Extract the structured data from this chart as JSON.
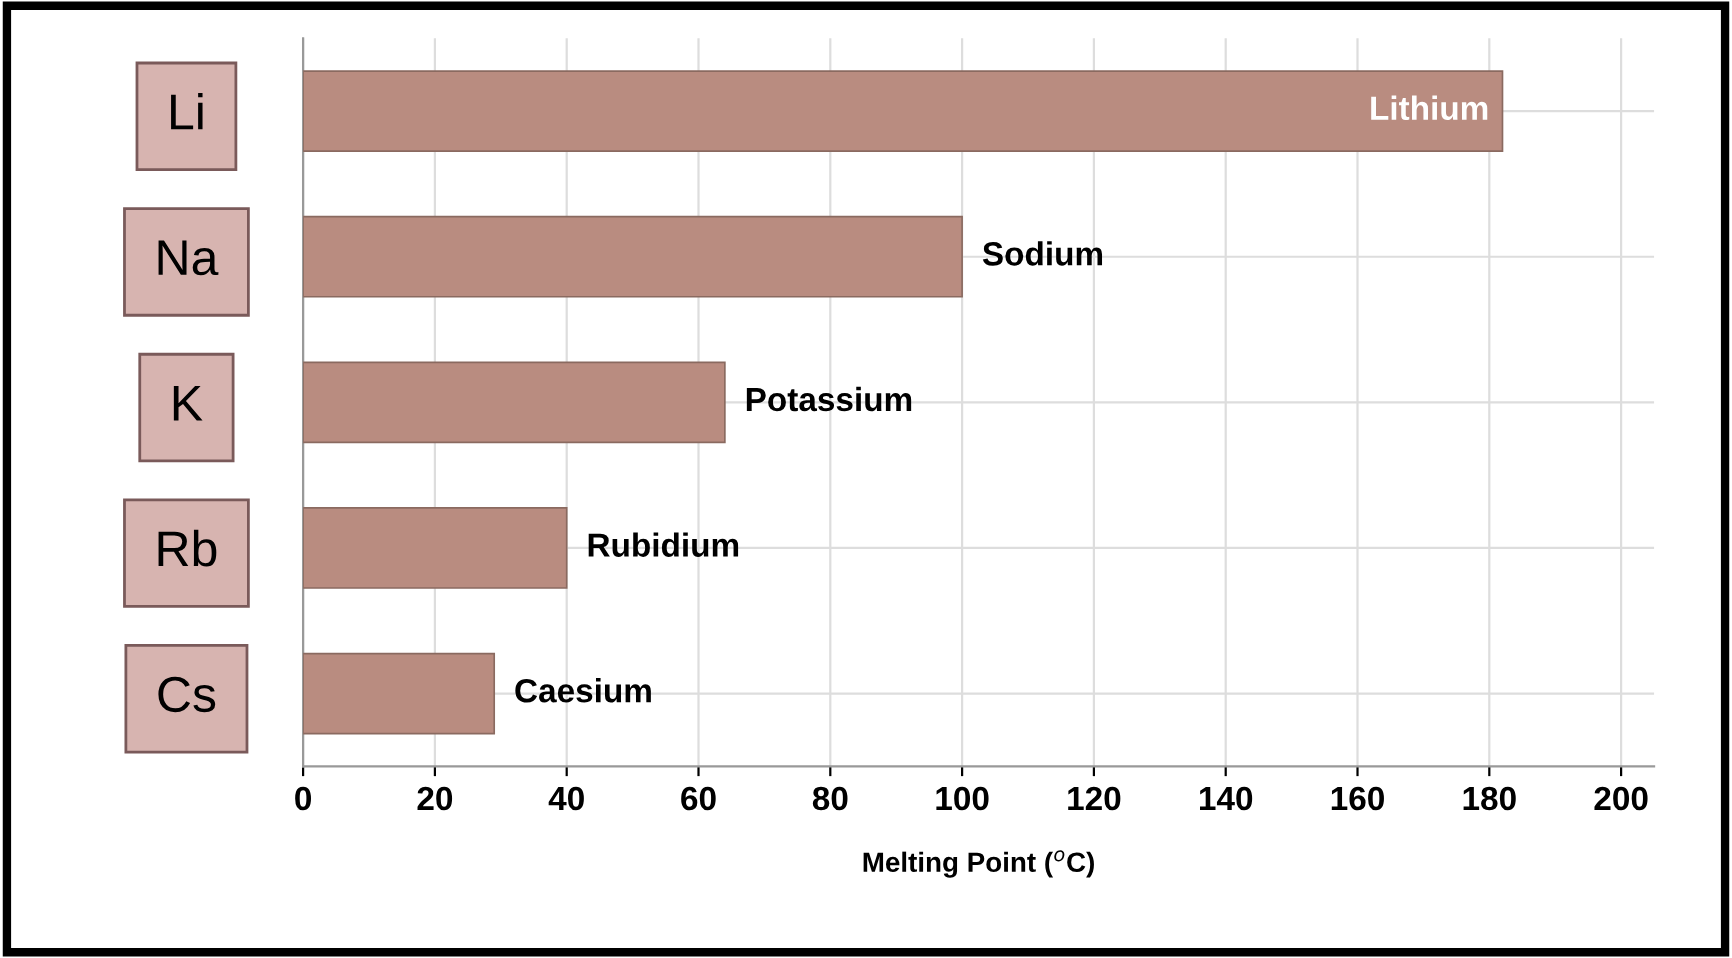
{
  "chart_data": {
    "type": "bar",
    "orientation": "horizontal",
    "categories": [
      "Li",
      "Na",
      "K",
      "Rb",
      "Cs"
    ],
    "values": [
      182,
      100,
      64,
      40,
      29
    ],
    "color": "#b98c80",
    "xlim": [
      0,
      205
    ],
    "xticks": [
      0,
      20,
      40,
      60,
      80,
      100,
      120,
      140,
      160,
      180,
      200
    ],
    "xlabel": "Melting Point ($^{o}$C)",
    "grid": true,
    "annotations": [
      {
        "text": "Lithium",
        "x": 182,
        "y": "Li"
      },
      {
        "text": "Sodium",
        "x": 100,
        "y": "Na"
      },
      {
        "text": "Potassium",
        "x": 64,
        "y": "K"
      },
      {
        "text": "Rubidium",
        "x": 40,
        "y": "Rb"
      },
      {
        "text": "Caesium",
        "x": 29,
        "y": "Cs"
      }
    ]
  }
}
